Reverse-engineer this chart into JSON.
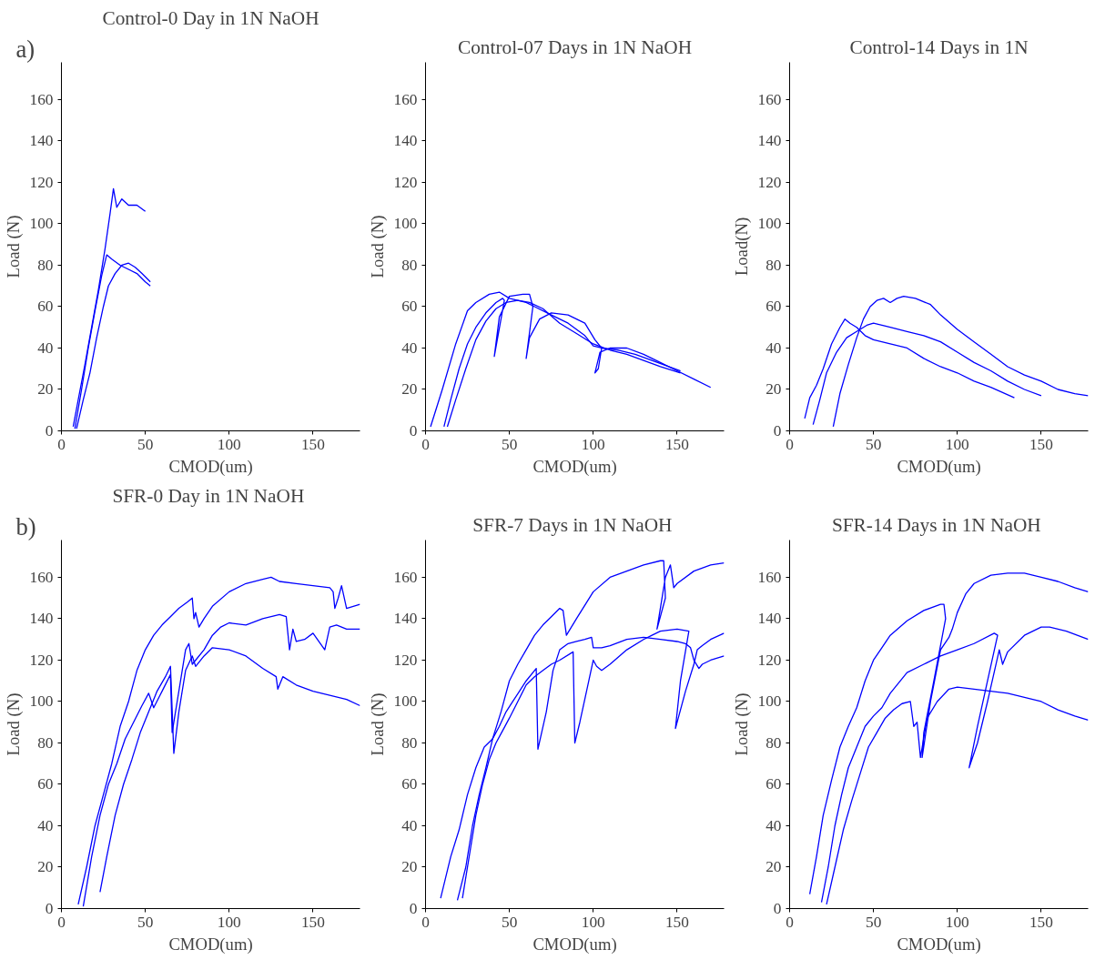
{
  "chart_data": [
    {
      "type": "line",
      "title": "Control-0 Day in 1N NaOH",
      "xlabel": "CMOD(um)",
      "ylabel": "Load (N)",
      "annotations": [
        "a)"
      ],
      "xlim": [
        0,
        178
      ],
      "ylim": [
        0,
        178
      ],
      "xticks": [
        0,
        50,
        100,
        150
      ],
      "yticks": [
        0,
        20,
        40,
        60,
        80,
        100,
        120,
        140,
        160
      ],
      "series": [
        {
          "color": "#0000ff",
          "x": [
            7,
            10,
            14,
            18,
            22,
            26,
            29,
            31,
            33,
            36,
            40,
            45,
            50
          ],
          "values": [
            2,
            15,
            32,
            50,
            68,
            88,
            105,
            117,
            108,
            112,
            109,
            109,
            106
          ]
        },
        {
          "color": "#0000ff",
          "x": [
            8,
            12,
            16,
            20,
            24,
            27,
            30,
            35,
            40,
            45,
            50,
            53
          ],
          "values": [
            1,
            20,
            40,
            58,
            75,
            85,
            83,
            80,
            78,
            76,
            72,
            70
          ]
        },
        {
          "color": "#0000ff",
          "x": [
            9,
            13,
            17,
            21,
            25,
            28,
            32,
            36,
            40,
            44,
            48,
            53
          ],
          "values": [
            1,
            15,
            28,
            45,
            60,
            70,
            76,
            80,
            81,
            79,
            76,
            72
          ]
        }
      ]
    },
    {
      "type": "line",
      "title": "Control-07 Days in 1N NaOH",
      "xlabel": "CMOD(um)",
      "ylabel": "Load (N)",
      "xlim": [
        0,
        178
      ],
      "ylim": [
        0,
        178
      ],
      "xticks": [
        0,
        50,
        100,
        150
      ],
      "yticks": [
        0,
        20,
        40,
        60,
        80,
        100,
        120,
        140,
        160
      ],
      "series": [
        {
          "color": "#0000ff",
          "x": [
            3,
            10,
            18,
            25,
            30,
            38,
            44,
            50,
            55,
            60,
            65,
            75,
            85,
            95,
            100,
            105,
            115,
            125,
            135,
            145,
            152
          ],
          "values": [
            2,
            20,
            42,
            58,
            62,
            66,
            67,
            64,
            63,
            62,
            60,
            56,
            52,
            46,
            41,
            40,
            39,
            37,
            34,
            31,
            29
          ]
        },
        {
          "color": "#0000ff",
          "x": [
            11,
            15,
            20,
            25,
            30,
            36,
            42,
            46,
            47,
            41,
            44,
            50,
            58,
            62,
            64,
            60,
            62,
            68,
            75,
            85,
            95,
            101,
            105,
            103,
            101,
            104,
            110,
            120,
            130,
            140,
            150,
            160,
            170
          ],
          "values": [
            2,
            15,
            30,
            42,
            50,
            57,
            62,
            64,
            63,
            36,
            55,
            65,
            66,
            66,
            60,
            35,
            45,
            54,
            57,
            56,
            52,
            44,
            40,
            30,
            28,
            38,
            40,
            40,
            37,
            33,
            29,
            25,
            21
          ]
        },
        {
          "color": "#0000ff",
          "x": [
            13,
            18,
            24,
            30,
            36,
            42,
            48,
            55,
            62,
            70,
            80,
            90,
            100,
            110,
            120,
            130,
            140,
            152
          ],
          "values": [
            2,
            15,
            30,
            44,
            53,
            59,
            62,
            63,
            62,
            59,
            52,
            47,
            42,
            39,
            37,
            34,
            31,
            28
          ]
        }
      ]
    },
    {
      "type": "line",
      "title": "Control-14 Days in 1N",
      "xlabel": "CMOD(um)",
      "ylabel": "Load(N)",
      "xlim": [
        0,
        178
      ],
      "ylim": [
        0,
        178
      ],
      "xticks": [
        0,
        50,
        100,
        150
      ],
      "yticks": [
        0,
        20,
        40,
        60,
        80,
        100,
        120,
        140,
        160
      ],
      "series": [
        {
          "color": "#0000ff",
          "x": [
            9,
            12,
            16,
            20,
            25,
            30,
            33,
            36,
            40,
            45,
            50,
            60,
            70,
            80,
            90,
            100,
            110,
            120,
            134
          ],
          "values": [
            6,
            16,
            22,
            30,
            42,
            50,
            54,
            52,
            50,
            46,
            44,
            42,
            40,
            35,
            31,
            28,
            24,
            21,
            16
          ]
        },
        {
          "color": "#0000ff",
          "x": [
            14,
            18,
            22,
            28,
            34,
            40,
            46,
            50,
            55,
            60,
            70,
            80,
            90,
            100,
            110,
            120,
            130,
            140,
            150
          ],
          "values": [
            3,
            15,
            28,
            38,
            45,
            48,
            51,
            52,
            51,
            50,
            48,
            46,
            43,
            38,
            33,
            29,
            24,
            20,
            17
          ]
        },
        {
          "color": "#0000ff",
          "x": [
            26,
            30,
            35,
            40,
            44,
            48,
            52,
            56,
            60,
            64,
            68,
            75,
            84,
            90,
            100,
            110,
            120,
            130,
            140,
            150,
            160,
            170,
            178
          ],
          "values": [
            2,
            18,
            32,
            45,
            54,
            60,
            63,
            64,
            62,
            64,
            65,
            64,
            61,
            56,
            49,
            43,
            37,
            31,
            27,
            24,
            20,
            18,
            17
          ]
        }
      ]
    },
    {
      "type": "line",
      "title": "SFR-0 Day in 1N  NaOH",
      "xlabel": "CMOD(um)",
      "ylabel": "Load (N)",
      "annotations": [
        "b)"
      ],
      "xlim": [
        0,
        178
      ],
      "ylim": [
        0,
        178
      ],
      "xticks": [
        0,
        50,
        100,
        150
      ],
      "yticks": [
        0,
        20,
        40,
        60,
        80,
        100,
        120,
        140,
        160
      ],
      "series": [
        {
          "color": "#0000ff",
          "x": [
            10,
            15,
            20,
            25,
            30,
            35,
            40,
            45,
            50,
            55,
            60,
            65,
            70,
            75,
            78,
            79,
            80,
            82,
            85,
            90,
            100,
            110,
            120,
            125,
            130,
            140,
            150,
            160,
            162,
            163,
            165,
            167,
            170,
            178
          ],
          "values": [
            2,
            20,
            40,
            55,
            70,
            88,
            100,
            115,
            125,
            132,
            137,
            141,
            145,
            148,
            150,
            140,
            143,
            136,
            140,
            146,
            153,
            157,
            159,
            160,
            158,
            157,
            156,
            155,
            153,
            145,
            150,
            156,
            145,
            147
          ]
        },
        {
          "color": "#0000ff",
          "x": [
            13,
            18,
            23,
            28,
            33,
            38,
            43,
            48,
            52,
            55,
            60,
            65,
            66,
            70,
            74,
            76,
            78,
            80,
            85,
            90,
            95,
            100,
            110,
            120,
            130,
            134,
            136,
            138,
            140,
            145,
            150,
            157,
            160,
            164,
            170,
            178
          ],
          "values": [
            1,
            25,
            45,
            60,
            70,
            82,
            90,
            98,
            104,
            97,
            105,
            113,
            85,
            105,
            125,
            128,
            118,
            120,
            125,
            132,
            136,
            138,
            137,
            140,
            142,
            141,
            125,
            135,
            129,
            130,
            133,
            125,
            136,
            137,
            135,
            135
          ]
        },
        {
          "color": "#0000ff",
          "x": [
            23,
            27,
            32,
            37,
            42,
            47,
            52,
            57,
            62,
            65,
            67,
            70,
            74,
            78,
            80,
            85,
            90,
            100,
            110,
            120,
            128,
            129,
            132,
            140,
            150,
            160,
            170,
            178
          ],
          "values": [
            8,
            25,
            45,
            60,
            72,
            85,
            95,
            105,
            112,
            117,
            75,
            95,
            115,
            122,
            117,
            122,
            126,
            125,
            122,
            116,
            112,
            106,
            112,
            108,
            105,
            103,
            101,
            98
          ]
        }
      ]
    },
    {
      "type": "line",
      "title": "SFR-7 Days in 1N  NaOH",
      "xlabel": "CMOD(um)",
      "ylabel": "Load (N)",
      "xlim": [
        0,
        178
      ],
      "ylim": [
        0,
        178
      ],
      "xticks": [
        0,
        50,
        100,
        150
      ],
      "yticks": [
        0,
        20,
        40,
        60,
        80,
        100,
        120,
        140,
        160
      ],
      "series": [
        {
          "color": "#0000ff",
          "x": [
            9,
            15,
            20,
            25,
            30,
            35,
            40,
            45,
            50,
            55,
            60,
            65,
            70,
            75,
            80,
            82,
            84,
            90,
            100,
            110,
            120,
            130,
            140,
            142,
            143,
            138,
            143,
            146,
            148,
            150,
            160,
            170,
            178
          ],
          "values": [
            5,
            25,
            38,
            55,
            68,
            78,
            82,
            95,
            110,
            118,
            125,
            132,
            137,
            141,
            145,
            144,
            132,
            140,
            153,
            160,
            163,
            166,
            168,
            168,
            150,
            135,
            160,
            166,
            155,
            157,
            163,
            166,
            167
          ]
        },
        {
          "color": "#0000ff",
          "x": [
            19,
            24,
            28,
            32,
            36,
            40,
            44,
            48,
            52,
            56,
            60,
            66,
            67,
            72,
            76,
            80,
            85,
            90,
            95,
            99,
            100,
            105,
            110,
            120,
            130,
            140,
            150,
            155,
            158,
            160,
            163,
            165,
            170,
            178
          ],
          "values": [
            4,
            20,
            40,
            55,
            68,
            82,
            88,
            95,
            100,
            105,
            110,
            116,
            77,
            95,
            115,
            125,
            128,
            129,
            130,
            131,
            126,
            126,
            127,
            130,
            131,
            130,
            129,
            128,
            126,
            120,
            116,
            118,
            120,
            122
          ]
        },
        {
          "color": "#0000ff",
          "x": [
            22,
            26,
            30,
            34,
            38,
            42,
            46,
            50,
            55,
            60,
            65,
            70,
            75,
            80,
            88,
            89,
            92,
            96,
            100,
            102,
            105,
            110,
            120,
            130,
            135,
            140,
            150,
            157,
            152,
            149,
            155,
            160,
            162,
            165,
            170,
            178
          ],
          "values": [
            5,
            25,
            45,
            60,
            72,
            80,
            86,
            92,
            100,
            108,
            112,
            115,
            118,
            120,
            124,
            80,
            90,
            105,
            120,
            117,
            115,
            118,
            125,
            130,
            132,
            134,
            135,
            134,
            110,
            87,
            105,
            118,
            125,
            127,
            130,
            133
          ]
        }
      ]
    },
    {
      "type": "line",
      "title": "SFR-14 Days in 1N  NaOH",
      "xlabel": "CMOD(um)",
      "ylabel": "Load (N)",
      "xlim": [
        0,
        178
      ],
      "ylim": [
        0,
        178
      ],
      "xticks": [
        0,
        50,
        100,
        150
      ],
      "yticks": [
        0,
        20,
        40,
        60,
        80,
        100,
        120,
        140,
        160
      ],
      "series": [
        {
          "color": "#0000ff",
          "x": [
            12,
            16,
            20,
            25,
            30,
            35,
            40,
            45,
            50,
            55,
            60,
            70,
            80,
            90,
            92,
            93,
            86,
            80,
            79,
            84,
            90,
            95,
            97,
            100,
            105,
            110,
            120,
            130,
            140,
            150,
            160,
            170,
            178
          ],
          "values": [
            7,
            25,
            45,
            62,
            78,
            88,
            97,
            110,
            120,
            126,
            132,
            139,
            144,
            147,
            147,
            140,
            110,
            85,
            73,
            100,
            125,
            131,
            135,
            143,
            152,
            157,
            161,
            162,
            162,
            160,
            158,
            155,
            153
          ]
        },
        {
          "color": "#0000ff",
          "x": [
            19,
            23,
            27,
            31,
            35,
            40,
            45,
            50,
            55,
            60,
            70,
            80,
            90,
            100,
            110,
            122,
            124,
            118,
            112,
            107,
            112,
            118,
            125,
            127,
            130,
            140,
            150,
            155,
            165,
            178
          ],
          "values": [
            3,
            20,
            40,
            55,
            68,
            78,
            88,
            93,
            97,
            104,
            114,
            118,
            122,
            125,
            128,
            133,
            132,
            110,
            88,
            68,
            80,
            100,
            125,
            118,
            124,
            132,
            136,
            136,
            134,
            130
          ]
        },
        {
          "color": "#0000ff",
          "x": [
            22,
            27,
            32,
            37,
            42,
            47,
            52,
            57,
            62,
            67,
            72,
            74,
            76,
            78,
            82,
            88,
            95,
            100,
            110,
            120,
            130,
            140,
            150,
            160,
            170,
            178
          ],
          "values": [
            2,
            20,
            38,
            52,
            65,
            78,
            85,
            92,
            96,
            99,
            100,
            88,
            90,
            73,
            92,
            100,
            106,
            107,
            106,
            105,
            104,
            102,
            100,
            96,
            93,
            91
          ]
        }
      ]
    }
  ]
}
